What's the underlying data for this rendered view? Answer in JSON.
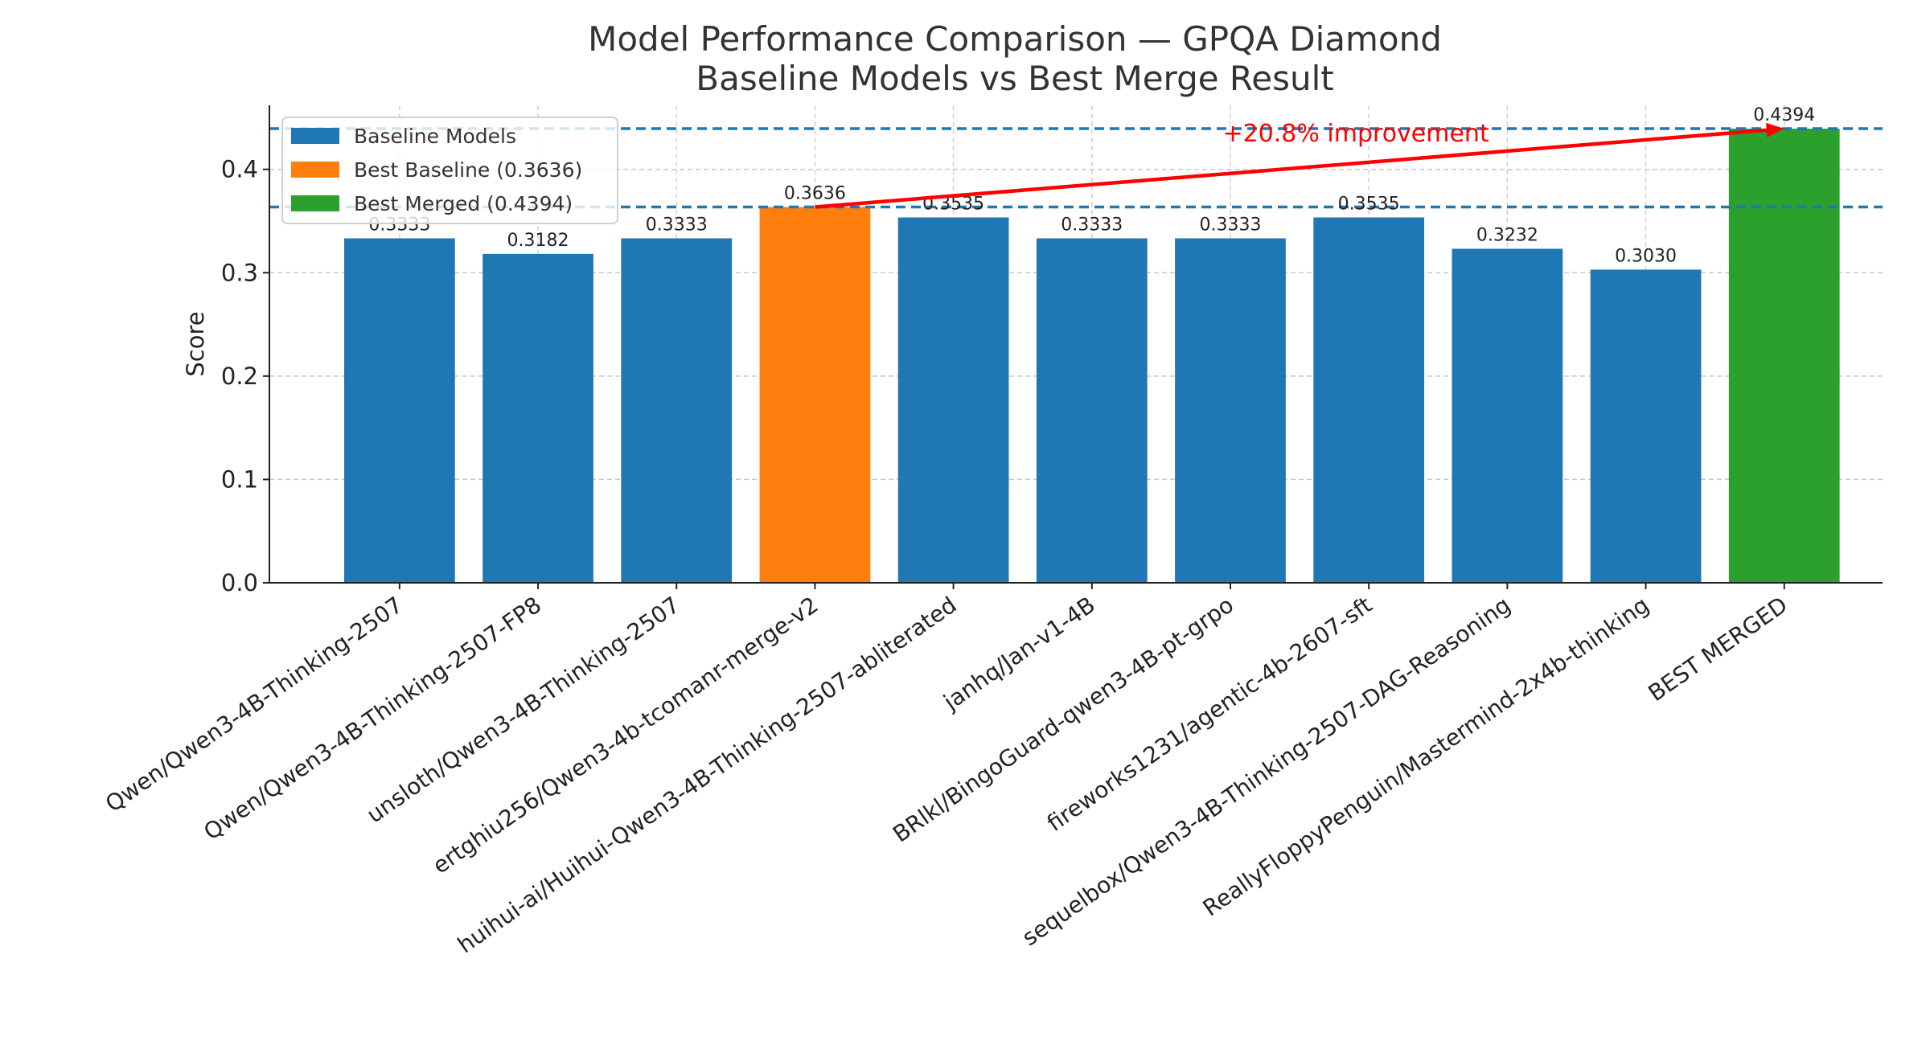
{
  "chart_data": {
    "type": "bar",
    "title": "Model Performance Comparison — GPQA Diamond",
    "subtitle": "Baseline Models vs Best Merge Result",
    "xlabel": "",
    "ylabel": "Score",
    "ylim": [
      0,
      0.462
    ],
    "yticks": [
      "0.0",
      "0.1",
      "0.2",
      "0.3",
      "0.4"
    ],
    "grid": true,
    "legend_placement": "upper-left",
    "categories": [
      "Qwen/Qwen3-4B-Thinking-2507",
      "Qwen/Qwen3-4B-Thinking-2507-FP8",
      "unsloth/Qwen3-4B-Thinking-2507",
      "ertghiu256/Qwen3-4b-tcomanr-merge-v2",
      "huihui-ai/Huihui-Qwen3-4B-Thinking-2507-abliterated",
      "janhq/Jan-v1-4B",
      "BRlkl/BingoGuard-qwen3-4B-pt-grpo",
      "fireworks1231/agentic-4b-2607-sft",
      "sequelbox/Qwen3-4B-Thinking-2507-DAG-Reasoning",
      "ReallyFloppyPenguin/Mastermind-2x4b-thinking",
      "BEST MERGED"
    ],
    "values": [
      0.3333,
      0.3182,
      0.3333,
      0.3636,
      0.3535,
      0.3333,
      0.3333,
      0.3535,
      0.3232,
      0.303,
      0.4394
    ],
    "value_labels": [
      "0.3333",
      "0.3182",
      "0.3333",
      "0.3636",
      "0.3535",
      "0.3333",
      "0.3333",
      "0.3535",
      "0.3232",
      "0.3030",
      "0.4394"
    ],
    "bar_groups": [
      "baseline",
      "baseline",
      "baseline",
      "best_baseline",
      "baseline",
      "baseline",
      "baseline",
      "baseline",
      "baseline",
      "baseline",
      "best_merged"
    ],
    "legend": [
      {
        "key": "baseline",
        "label": "Baseline Models",
        "color": "#1f77b4"
      },
      {
        "key": "best_baseline",
        "label": "Best Baseline (0.3636)",
        "color": "#ff7f0e"
      },
      {
        "key": "best_merged",
        "label": "Best Merged (0.4394)",
        "color": "#2ca02c"
      }
    ],
    "reference_lines": [
      {
        "y": 0.4394,
        "style": "dashed",
        "color": "#1f77b4"
      },
      {
        "y": 0.3636,
        "style": "dashed",
        "color": "#1f77b4"
      }
    ],
    "annotation": {
      "text": "+20.8% improvement",
      "color": "#ff0000",
      "arrow_from": {
        "category_index": 3,
        "y": 0.3636
      },
      "arrow_to": {
        "category_index": 10,
        "y": 0.4394
      }
    }
  }
}
